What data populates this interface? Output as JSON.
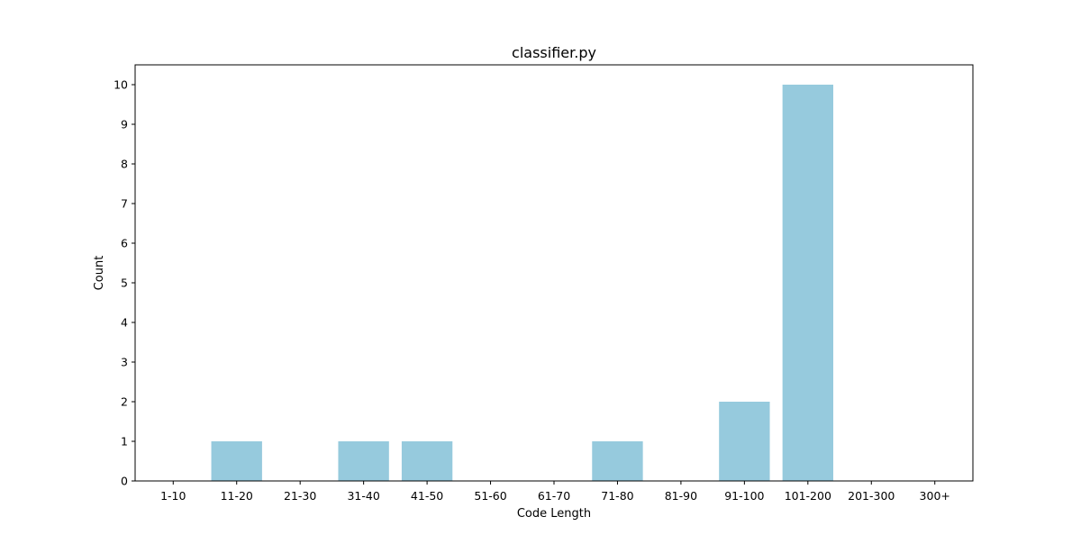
{
  "chart_data": {
    "type": "bar",
    "title": "classifier.py",
    "xlabel": "Code Length",
    "ylabel": "Count",
    "categories": [
      "1-10",
      "11-20",
      "21-30",
      "31-40",
      "41-50",
      "51-60",
      "61-70",
      "71-80",
      "81-90",
      "91-100",
      "101-200",
      "201-300",
      "300+"
    ],
    "values": [
      0,
      1,
      0,
      1,
      1,
      0,
      0,
      1,
      0,
      2,
      10,
      0,
      0
    ],
    "ylim": [
      0,
      10.5
    ],
    "yticks": [
      0,
      1,
      2,
      3,
      4,
      5,
      6,
      7,
      8,
      9,
      10
    ],
    "bar_color": "#96cadd",
    "grid": false,
    "legend": "none"
  }
}
